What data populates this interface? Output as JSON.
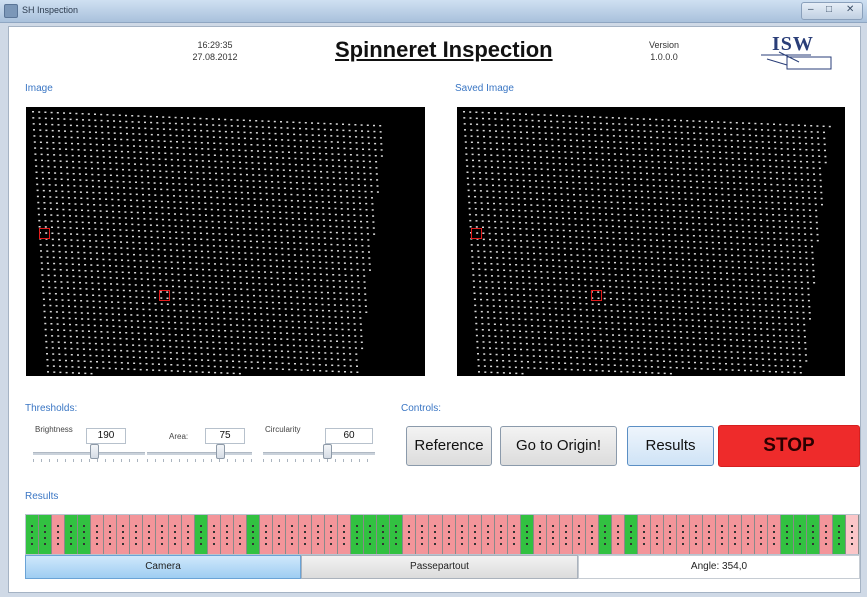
{
  "window": {
    "title": "SH Inspection"
  },
  "header": {
    "time": "16:29:35",
    "date": "27.08.2012",
    "app_title": "Spinneret Inspection",
    "version_label": "Version",
    "version_value": "1.0.0.0",
    "logo_text": "ISW"
  },
  "image_panel": {
    "label": "Image"
  },
  "saved_image_panel": {
    "label": "Saved Image"
  },
  "thresholds": {
    "label": "Thresholds:",
    "brightness": {
      "label": "Brightness",
      "value": "190",
      "slider_fraction": 0.55
    },
    "area": {
      "label": "Area:",
      "value": "75",
      "slider_fraction": 0.72
    },
    "circularity": {
      "label": "Circularity",
      "value": "60",
      "slider_fraction": 0.58
    }
  },
  "controls": {
    "label": "Controls:",
    "reference": "Reference",
    "go_to_origin": "Go to Origin!",
    "results": "Results",
    "stop": "STOP"
  },
  "results": {
    "label": "Results",
    "cells": [
      "g",
      "g",
      "r",
      "g",
      "g",
      "r",
      "r",
      "r",
      "r",
      "r",
      "r",
      "r",
      "r",
      "g",
      "r",
      "r",
      "r",
      "g",
      "r",
      "r",
      "r",
      "r",
      "r",
      "r",
      "r",
      "g",
      "g",
      "g",
      "g",
      "r",
      "r",
      "r",
      "r",
      "r",
      "r",
      "r",
      "r",
      "r",
      "g",
      "r",
      "r",
      "r",
      "r",
      "r",
      "g",
      "r",
      "g",
      "r",
      "r",
      "r",
      "r",
      "r",
      "r",
      "r",
      "r",
      "r",
      "r",
      "r",
      "g",
      "g",
      "g",
      "r",
      "g",
      "l"
    ]
  },
  "tabs": {
    "camera": "Camera",
    "passepartout": "Passepartout"
  },
  "angle": "Angle: 354,0",
  "colors": {
    "accent": "#3a76c4",
    "stop": "#ee2b2b",
    "ok": "#32c141",
    "fail": "#f3959a"
  }
}
